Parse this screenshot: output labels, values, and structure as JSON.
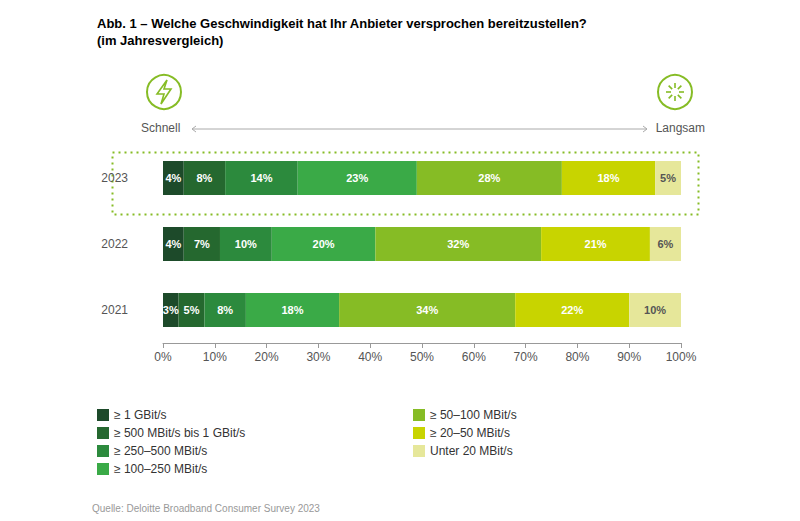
{
  "chart_data": {
    "type": "bar",
    "title": "Abb. 1 – Welche Geschwindigkeit hat Ihr Anbieter versprochen bereitzustellen?",
    "subtitle": "(im Jahresvergleich)",
    "annotations": [
      "Schnell",
      "Langsam"
    ],
    "source": "Quelle: Deloitte Broadband Consumer Survey 2023",
    "orientation": "horizontal",
    "stacked": true,
    "data_labels": true,
    "grid": false,
    "legend": "bottom-left",
    "categories": [
      "2023",
      "2022",
      "2021"
    ],
    "xlim": [
      0,
      100
    ],
    "xticks": [
      {
        "value": 0,
        "label": "0%"
      },
      {
        "value": 10,
        "label": "10%"
      },
      {
        "value": 20,
        "label": "20%"
      },
      {
        "value": 30,
        "label": "30%"
      },
      {
        "value": 40,
        "label": "40%"
      },
      {
        "value": 50,
        "label": "50%"
      },
      {
        "value": 60,
        "label": "60%"
      },
      {
        "value": 70,
        "label": "70%"
      },
      {
        "value": 80,
        "label": "80%"
      },
      {
        "value": 90,
        "label": "90%"
      },
      {
        "value": 100,
        "label": "100%"
      }
    ],
    "series": [
      {
        "name": "≥ 1 GBit/s",
        "color": "#1d4a2a",
        "values": [
          4,
          4,
          3
        ],
        "value_labels": [
          "4%",
          "4%",
          "3%"
        ]
      },
      {
        "name": "≥ 500 MBit/s bis 1 GBit/s",
        "color": "#25682f",
        "values": [
          8,
          7,
          5
        ],
        "value_labels": [
          "8%",
          "7%",
          "5%"
        ]
      },
      {
        "name": "≥ 250–500 MBit/s",
        "color": "#2c8a3d",
        "values": [
          14,
          10,
          8
        ],
        "value_labels": [
          "14%",
          "10%",
          "8%"
        ]
      },
      {
        "name": "≥ 100–250 MBit/s",
        "color": "#3aaa47",
        "values": [
          23,
          20,
          18
        ],
        "value_labels": [
          "23%",
          "20%",
          "18%"
        ]
      },
      {
        "name": "≥ 50–100 MBit/s",
        "color": "#86bc25",
        "values": [
          28,
          32,
          34
        ],
        "value_labels": [
          "28%",
          "32%",
          "34%"
        ]
      },
      {
        "name": "≥ 20–50 MBit/s",
        "color": "#c8d400",
        "values": [
          18,
          21,
          22
        ],
        "value_labels": [
          "18%",
          "21%",
          "22%"
        ]
      },
      {
        "name": "Unter 20 MBit/s",
        "color": "#e6e79a",
        "values": [
          5,
          6,
          10
        ],
        "value_labels": [
          "5%",
          "6%",
          "10%"
        ]
      }
    ]
  }
}
